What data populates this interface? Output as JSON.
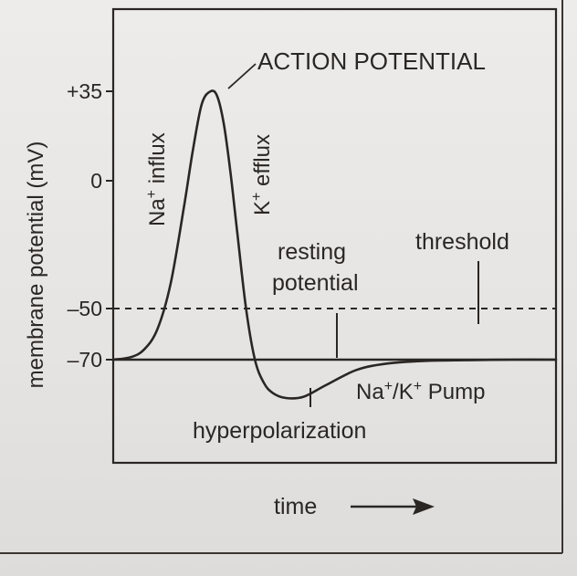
{
  "chart_data": {
    "type": "line",
    "title": "",
    "xlabel": "time",
    "ylabel": "membrane potential (mV)",
    "y_ticks": [
      {
        "value": 35,
        "label": "+35"
      },
      {
        "value": 0,
        "label": "0"
      },
      {
        "value": -50,
        "label": "–50"
      },
      {
        "value": -70,
        "label": "–70"
      }
    ],
    "threshold_value": -50,
    "resting_value": -70,
    "series": [
      {
        "x": [
          0,
          0.04,
          0.07,
          0.1,
          0.13,
          0.16,
          0.18,
          0.2,
          0.22,
          0.235,
          0.25,
          0.265,
          0.28,
          0.3,
          0.32,
          0.34,
          0.36,
          0.39,
          0.43,
          0.48,
          0.55,
          0.62,
          0.7,
          0.8,
          0.9,
          1.0
        ],
        "y": [
          -70,
          -69,
          -66,
          -58,
          -40,
          -10,
          12,
          30,
          35,
          33,
          22,
          3,
          -20,
          -50,
          -70,
          -79,
          -83,
          -85,
          -84.5,
          -80,
          -74,
          -71.5,
          -70.5,
          -70.2,
          -70,
          -70
        ]
      }
    ],
    "annotations": {
      "action_potential": "ACTION POTENTIAL",
      "na_label": "Na",
      "na_sup": "+",
      "na_word": " influx",
      "k_label": "K",
      "k_sup": "+",
      "k_word": " efflux",
      "resting_line1": "resting",
      "resting_line2": "potential",
      "threshold": "threshold",
      "hyperpolarization": "hyperpolarization",
      "pump_na": "Na",
      "pump_sup1": "+",
      "pump_slash": "/K",
      "pump_sup2": "+",
      "pump_word": " Pump"
    },
    "grid": false,
    "legend": "none"
  }
}
